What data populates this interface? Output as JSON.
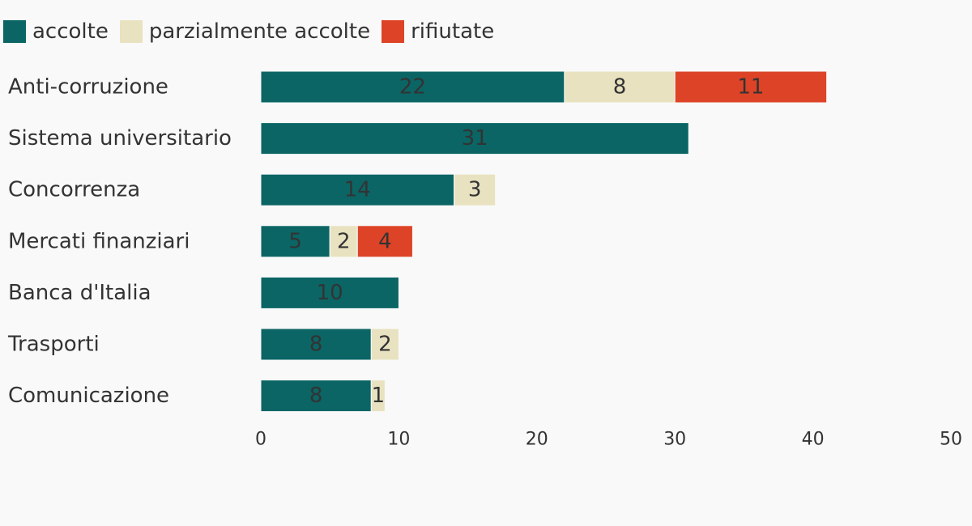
{
  "chart_data": {
    "type": "bar",
    "orientation": "horizontal",
    "stacked": true,
    "categories": [
      "Anti-corruzione",
      "Sistema universitario",
      "Concorrenza",
      "Mercati finanziari",
      "Banca d'Italia",
      "Trasporti",
      "Comunicazione"
    ],
    "series": [
      {
        "name": "accolte",
        "color": "#0b6565",
        "values": [
          22,
          31,
          14,
          5,
          10,
          8,
          8
        ]
      },
      {
        "name": "parzialmente accolte",
        "color": "#e8e2c0",
        "values": [
          8,
          0,
          3,
          2,
          0,
          2,
          1
        ]
      },
      {
        "name": "rifiutate",
        "color": "#dd4326",
        "values": [
          11,
          0,
          0,
          4,
          0,
          0,
          0
        ]
      }
    ],
    "xlim": [
      0,
      50
    ],
    "xticks": [
      "0",
      "10",
      "20",
      "30",
      "40",
      "50"
    ],
    "xlabel": "",
    "ylabel": "",
    "title": "",
    "grid": false,
    "legend_position": "top-left"
  }
}
